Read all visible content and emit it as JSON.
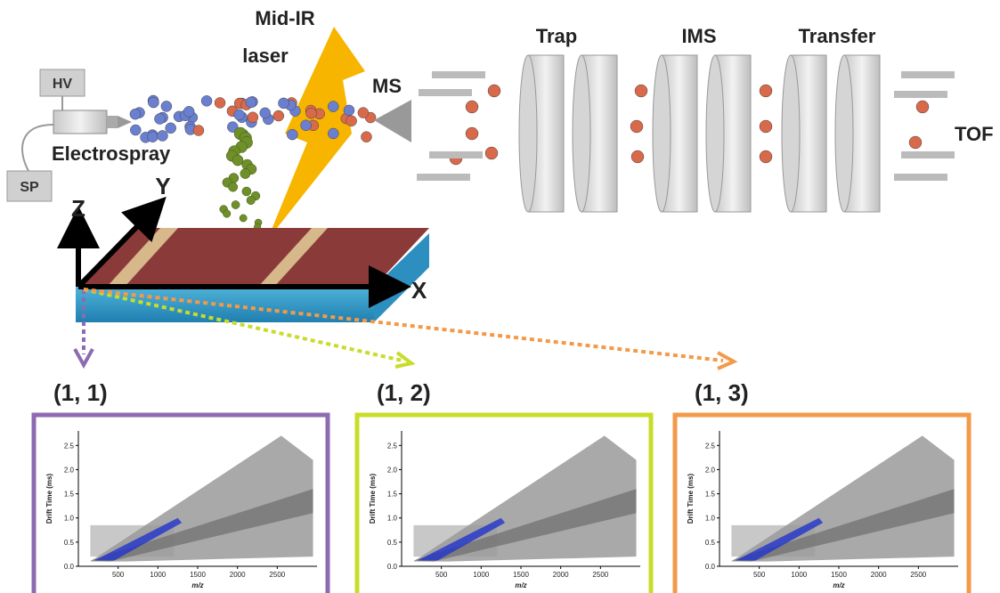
{
  "diagram": {
    "labels": {
      "hv": "HV",
      "sp": "SP",
      "electrospray": "Electrospray",
      "laser_1": "Mid-IR",
      "laser_2": "laser",
      "ms": "MS",
      "trap": "Trap",
      "ims": "IMS",
      "transfer": "Transfer",
      "tof": "TOF",
      "x": "X",
      "y": "Y",
      "z": "Z"
    },
    "panels": [
      {
        "label": "(1, 1)",
        "color": "#8e6bb0",
        "ylabel": "Drift Time (ms)",
        "xlabel": "m/z",
        "xlim": [
          0,
          3000
        ],
        "ylim": [
          0,
          2.8
        ],
        "xticks": [
          500,
          1000,
          1500,
          2000,
          2500
        ],
        "yticks": [
          {
            "value": 0,
            "label": "0.0"
          },
          0.5,
          {
            "value": 1,
            "label": "1.0"
          },
          1.5,
          {
            "value": 2,
            "label": "2.0"
          },
          2.5
        ]
      },
      {
        "label": "(1, 2)",
        "color": "#c8dc2a",
        "ylabel": "Drift Time (ms)",
        "xlabel": "m/z",
        "xlim": [
          0,
          3000
        ],
        "ylim": [
          0,
          2.8
        ],
        "xticks": [
          500,
          1000,
          1500,
          2000,
          2500
        ],
        "yticks": [
          {
            "value": 0,
            "label": "0.0"
          },
          0.5,
          {
            "value": 1,
            "label": "1.0"
          },
          1.5,
          {
            "value": 2,
            "label": "2.0"
          },
          2.5
        ]
      },
      {
        "label": "(1, 3)",
        "color": "#f39a4a",
        "ylabel": "Drift Time (ms)",
        "xlabel": "m/z",
        "xlim": [
          0,
          3000
        ],
        "ylim": [
          0,
          2.8
        ],
        "xticks": [
          500,
          1000,
          1500,
          2000,
          2500
        ],
        "yticks": [
          {
            "value": 0,
            "label": "0.0"
          },
          0.5,
          {
            "value": 1,
            "label": "1.0"
          },
          1.5,
          {
            "value": 2,
            "label": "2.0"
          },
          2.5
        ]
      }
    ]
  }
}
